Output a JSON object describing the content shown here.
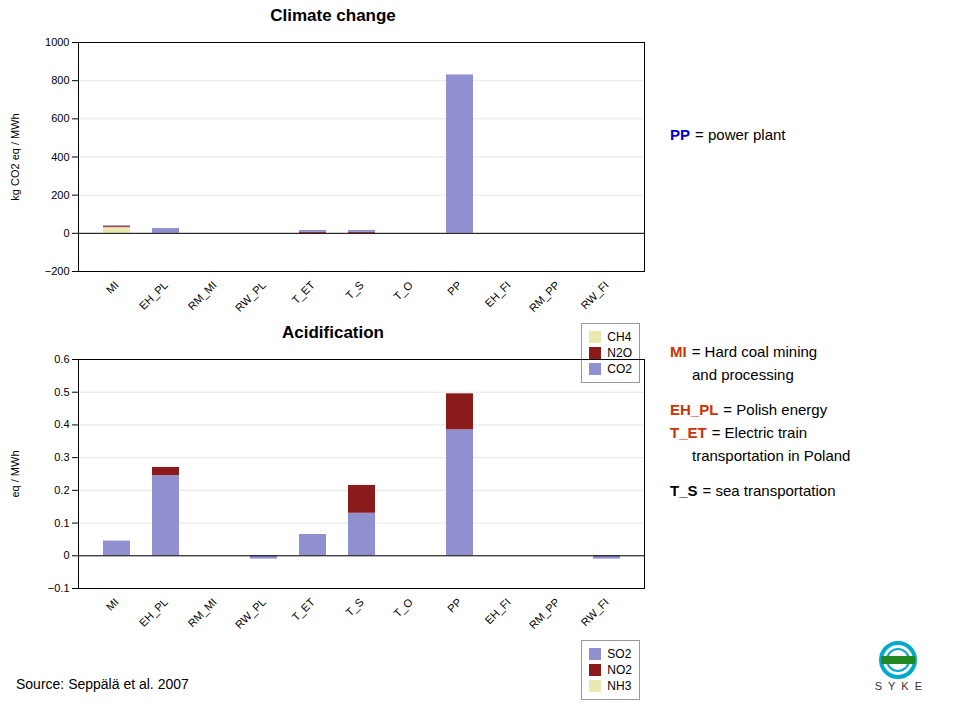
{
  "chart_data": [
    {
      "type": "bar",
      "stacked": true,
      "title": "Climate change",
      "ylabel": "kg CO2 eq / MWh",
      "categories": [
        "MI",
        "EH_PL",
        "RM_MI",
        "RW_PL",
        "T_ET",
        "T_S",
        "T_O",
        "PP",
        "EH_FI",
        "RM_PP",
        "RW_FI"
      ],
      "series": [
        {
          "name": "CH4",
          "color": "#e8e8b0",
          "values": [
            30,
            0,
            0,
            0,
            0,
            0,
            0,
            0,
            0,
            0,
            0
          ]
        },
        {
          "name": "N2O",
          "color": "#8b1a1a",
          "values": [
            5,
            0,
            0,
            0,
            5,
            5,
            0,
            0,
            0,
            0,
            0
          ]
        },
        {
          "name": "CO2",
          "color": "#9090d0",
          "values": [
            5,
            25,
            0,
            0,
            10,
            10,
            0,
            830,
            0,
            0,
            0
          ]
        }
      ],
      "ylim": [
        -200,
        1000
      ],
      "yticks": [
        -200,
        0,
        200,
        400,
        600,
        800,
        1000
      ],
      "grid": true,
      "legend": "upper right",
      "annotations": [
        {
          "label": "PP",
          "color": "#0000dd",
          "text": "= power plant"
        }
      ]
    },
    {
      "type": "bar",
      "stacked": true,
      "title": "Acidification",
      "ylabel": "eq / MWh",
      "categories": [
        "MI",
        "EH_PL",
        "RM_MI",
        "RW_PL",
        "T_ET",
        "T_S",
        "T_O",
        "PP",
        "EH_FI",
        "RM_PP",
        "RW_FI"
      ],
      "series": [
        {
          "name": "SO2",
          "color": "#9090d0",
          "values": [
            0.045,
            0.245,
            0,
            -0.01,
            0.065,
            0.13,
            0,
            0.385,
            0,
            0,
            -0.01
          ]
        },
        {
          "name": "NO2",
          "color": "#8b1a1a",
          "values": [
            0,
            0.025,
            0,
            0,
            0,
            0.085,
            0,
            0.11,
            0,
            0,
            0
          ]
        },
        {
          "name": "NH3",
          "color": "#e8e8b0",
          "values": [
            0,
            0,
            0,
            0,
            0,
            0,
            0,
            0,
            0,
            0,
            0
          ]
        }
      ],
      "ylim": [
        -0.1,
        0.6
      ],
      "yticks": [
        -0.1,
        0,
        0.1,
        0.2,
        0.3,
        0.4,
        0.5,
        0.6
      ],
      "grid": true,
      "legend": "upper right",
      "annotations": [
        {
          "label": "MI",
          "color": "#cc3300",
          "text": "= Hard coal mining"
        },
        {
          "text": "and processing"
        },
        {
          "label": "EH_PL",
          "color": "#cc3300",
          "text": "= Polish energy"
        },
        {
          "label": "T_ET",
          "color": "#cc3300",
          "text": "= Electric train"
        },
        {
          "text": "transportation in Poland"
        },
        {
          "label": "T_S",
          "color": "#000000",
          "text": "= sea transportation"
        }
      ],
      "caption": [
        "Source: Seppälä et al. 2007",
        "S  Y  K  E"
      ]
    }
  ]
}
